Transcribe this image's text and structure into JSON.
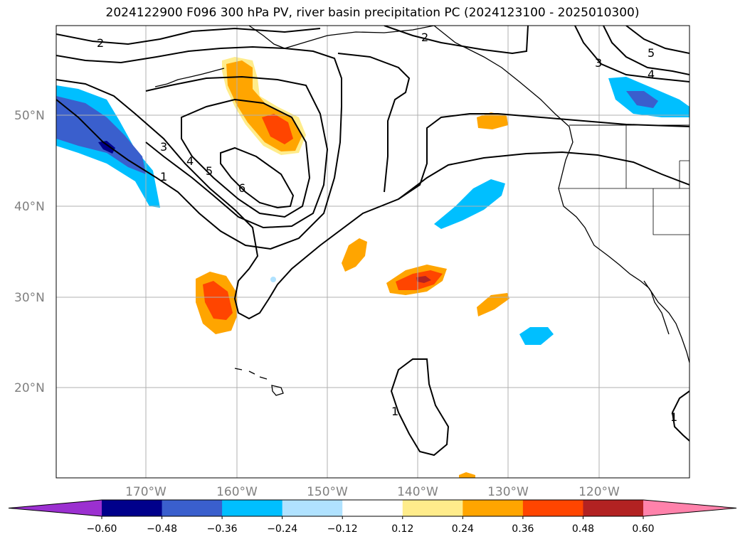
{
  "title": "2024122900 F096 300 hPa PV, river basin precipitation PC (2024123100 - 2025010300)",
  "latitude_labels": [
    "50°N",
    "40°N",
    "30°N",
    "20°N"
  ],
  "longitude_labels": [
    "170°W",
    "160°W",
    "150°W",
    "140°W",
    "130°W",
    "120°W"
  ],
  "pv_contour_labels": [
    "2",
    "3",
    "4",
    "5",
    "6",
    "1",
    "2",
    "3",
    "4",
    "5",
    "1",
    "1"
  ],
  "colorbar": {
    "tick_labels": [
      "−0.60",
      "−0.48",
      "−0.36",
      "−0.24",
      "−0.12",
      "0.12",
      "0.24",
      "0.36",
      "0.48",
      "0.60"
    ],
    "colors": [
      "#9b30d0",
      "#00008b",
      "#3a5fcd",
      "#00bfff",
      "#b0e2ff",
      "#ffffff",
      "#ffec8b",
      "#ffa500",
      "#ff4500",
      "#b22222",
      "#ff82ab"
    ]
  }
}
